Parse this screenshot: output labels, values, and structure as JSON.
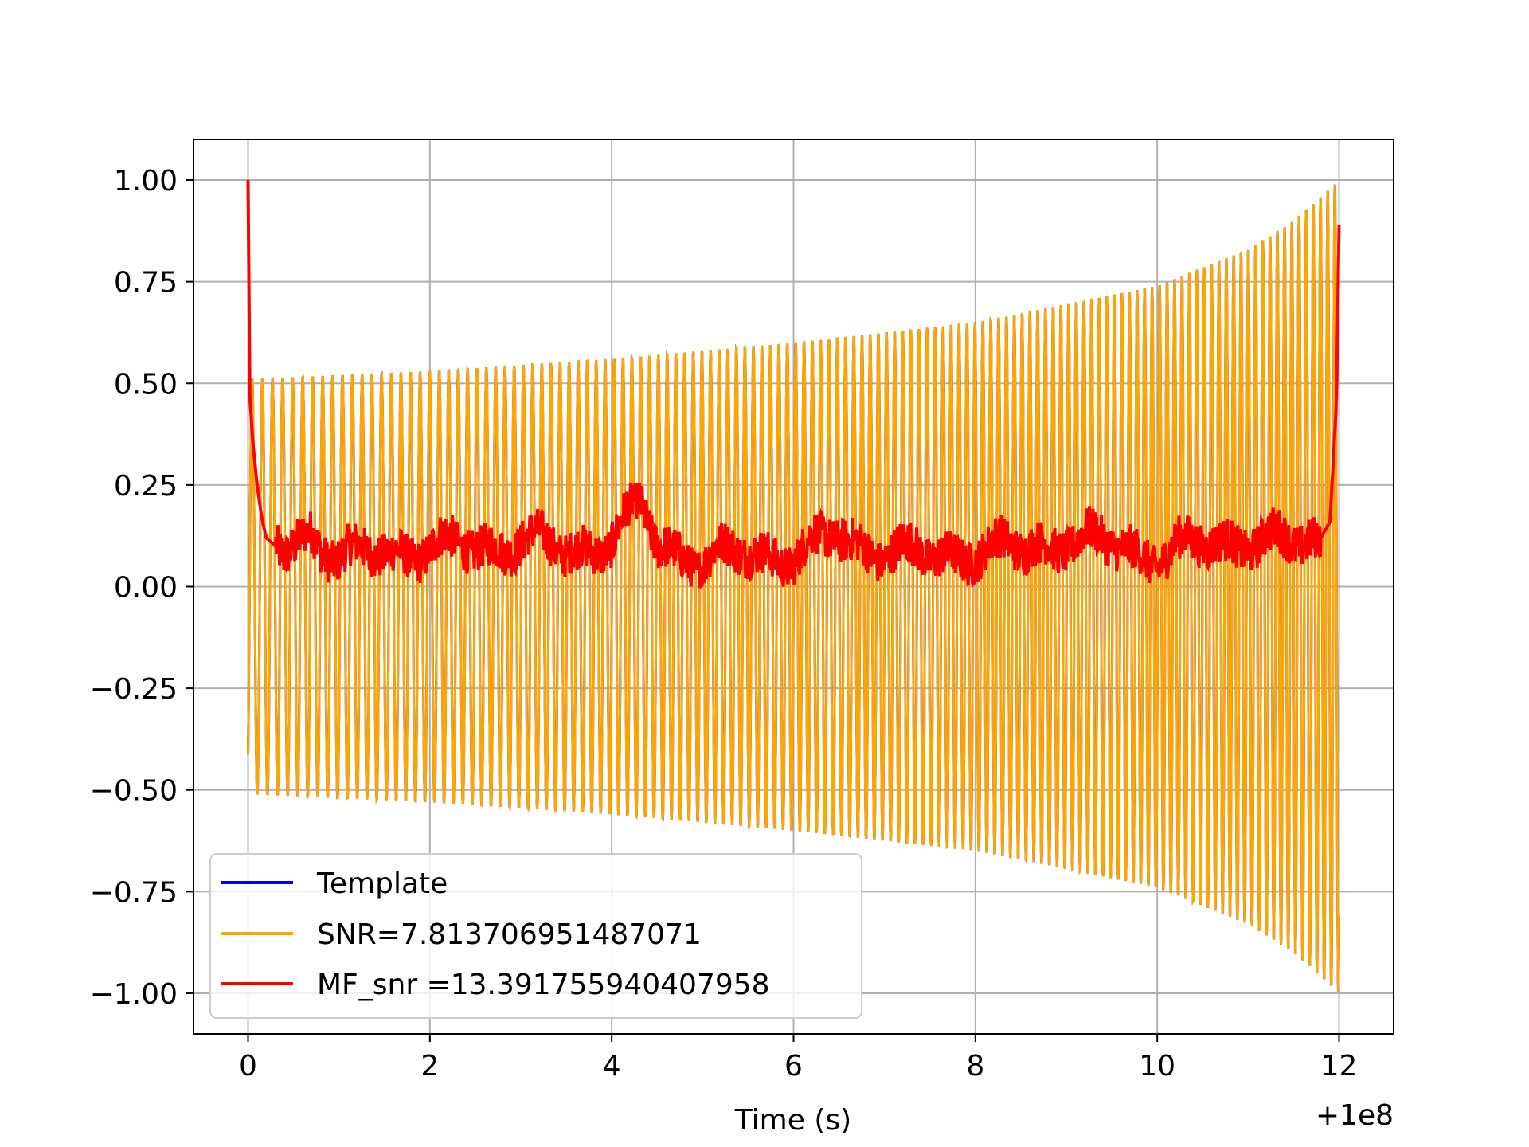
{
  "chart_data": {
    "type": "line",
    "title": "",
    "xlabel": "Time (s)",
    "ylabel": "",
    "x_offset_label": "+1e8",
    "xlim": [
      -0.6,
      12.6
    ],
    "ylim": [
      -1.1,
      1.1
    ],
    "xticks": [
      0,
      2,
      4,
      6,
      8,
      10,
      12
    ],
    "xtick_labels": [
      "0",
      "2",
      "4",
      "6",
      "8",
      "10",
      "12"
    ],
    "yticks": [
      1.0,
      0.75,
      0.5,
      0.25,
      0.0,
      -0.25,
      -0.5,
      -0.75,
      -1.0
    ],
    "ytick_labels": [
      "1.00",
      "0.75",
      "0.50",
      "0.25",
      "0.00",
      "−0.25",
      "−0.50",
      "−0.75",
      "−1.00"
    ],
    "grid": true,
    "legend_position": "lower-left",
    "series": [
      {
        "name": "Template",
        "color": "#0000ff",
        "description_values": {
          "x_start": 0,
          "x_end": 12,
          "envelope": [
            [
              0,
              0.51
            ],
            [
              2,
              0.53
            ],
            [
              4,
              0.56
            ],
            [
              6,
              0.6
            ],
            [
              8,
              0.65
            ],
            [
              10,
              0.74
            ],
            [
              11,
              0.83
            ],
            [
              11.5,
              0.9
            ],
            [
              12,
              1.0
            ]
          ],
          "cycles": 130
        }
      },
      {
        "name": "SNR=7.813706951487071",
        "color": "#ffa500",
        "description_values": {
          "x_start": 0,
          "x_end": 12,
          "envelope": [
            [
              0,
              0.51
            ],
            [
              2,
              0.53
            ],
            [
              4,
              0.56
            ],
            [
              6,
              0.6
            ],
            [
              8,
              0.65
            ],
            [
              10,
              0.74
            ],
            [
              11,
              0.83
            ],
            [
              11.5,
              0.9
            ],
            [
              12,
              1.0
            ]
          ],
          "cycles": 130
        }
      },
      {
        "name": "MF_snr =13.391755940407958",
        "color": "#ff0000",
        "x": [
          0,
          0.02,
          0.05,
          0.1,
          0.15,
          0.2,
          0.4,
          0.7,
          1.0,
          1.5,
          2.0,
          2.5,
          3.0,
          3.5,
          4.0,
          4.3,
          4.5,
          5.0,
          5.5,
          6.0,
          6.5,
          7.0,
          7.5,
          8.0,
          8.5,
          9.0,
          9.5,
          10.0,
          10.5,
          11.0,
          11.5,
          11.8,
          11.9,
          11.97,
          12.0
        ],
        "values": [
          1.0,
          0.47,
          0.36,
          0.25,
          0.17,
          0.12,
          0.08,
          0.14,
          0.07,
          0.08,
          0.1,
          0.09,
          0.12,
          0.08,
          0.12,
          0.2,
          0.1,
          0.07,
          0.08,
          0.08,
          0.12,
          0.09,
          0.07,
          0.09,
          0.09,
          0.12,
          0.1,
          0.08,
          0.1,
          0.12,
          0.1,
          0.12,
          0.16,
          0.45,
          0.89
        ]
      }
    ]
  }
}
